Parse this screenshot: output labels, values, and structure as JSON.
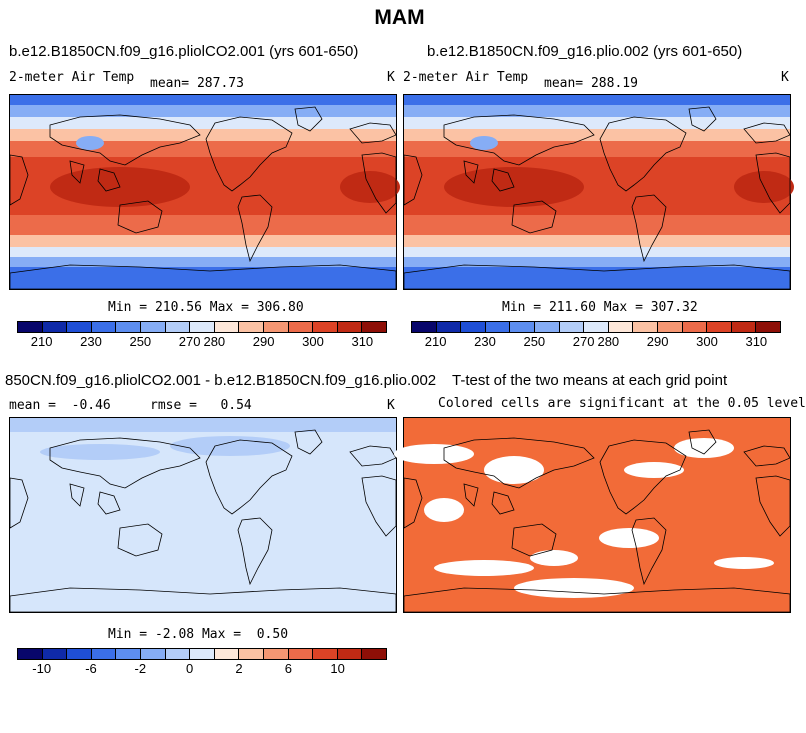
{
  "title": "MAM",
  "panels": {
    "p1": {
      "case": "b.e12.B1850CN.f09_g16.pliolCO2.001 (yrs 601-650)",
      "variable": "2-meter Air Temp",
      "mean_label": "mean=",
      "mean_value": "287.73",
      "units": "K",
      "min_label": "Min =",
      "min_value": "210.56",
      "max_label": "Max =",
      "max_value": "306.80"
    },
    "p2": {
      "case": "b.e12.B1850CN.f09_g16.plio.002 (yrs 601-650)",
      "variable": "2-meter Air Temp",
      "mean_label": "mean=",
      "mean_value": "288.19",
      "units": "K",
      "min_label": "Min =",
      "min_value": "211.60",
      "max_label": "Max =",
      "max_value": "307.32"
    },
    "p3": {
      "case": "850CN.f09_g16.pliolCO2.001 - b.e12.B1850CN.f09_g16.plio.002",
      "mean_label": "mean =",
      "mean_value": "-0.46",
      "rmse_label": "rmse =",
      "rmse_value": "0.54",
      "units": "K",
      "min_label": "Min =",
      "min_value": "-2.08",
      "max_label": "Max =",
      "max_value": "0.50"
    },
    "p4": {
      "title": "T-test of the two means at each grid point",
      "subtitle": "Colored cells are significant at the 0.05 level"
    }
  },
  "colorbars": {
    "abs": {
      "colors": [
        "#08066b",
        "#0f2aa8",
        "#1f4fd6",
        "#3b6fe8",
        "#5d8ef0",
        "#86adf5",
        "#b3cdf8",
        "#dde9fb",
        "#fde7d9",
        "#fbc2a4",
        "#f59773",
        "#ec6b4a",
        "#dc4326",
        "#c02a14",
        "#8e0f07"
      ],
      "labels": [
        "210",
        "230",
        "250",
        "270",
        "280",
        "290",
        "300",
        "310"
      ]
    },
    "diff": {
      "colors": [
        "#08066b",
        "#0f2aa8",
        "#1f4fd6",
        "#3b6fe8",
        "#5d8ef0",
        "#86adf5",
        "#b3cdf8",
        "#dde9fb",
        "#fde7d9",
        "#fbc2a4",
        "#f59773",
        "#ec6b4a",
        "#dc4326",
        "#c02a14",
        "#8e0f07"
      ],
      "labels": [
        "-10",
        "-6",
        "-2",
        "0",
        "2",
        "6",
        "10"
      ]
    }
  },
  "map_colors": {
    "polar": "#3b6fe8",
    "subpolar": "#86adf5",
    "mid_cool": "#dde9fb",
    "mid_warm": "#fbc2a4",
    "subtropic": "#ec6b4a",
    "tropic": "#dc4326",
    "hot": "#c02a14",
    "diff_bg": "#d6e6fb",
    "diff_blue": "#b3cdf8",
    "ttest": "#f26b38"
  }
}
